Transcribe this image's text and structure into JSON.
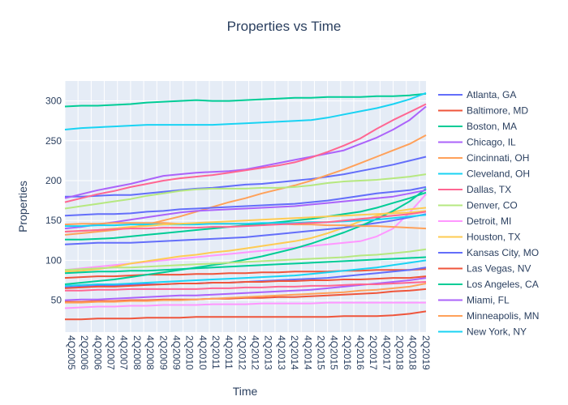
{
  "chart_data": {
    "type": "line",
    "title": "Properties vs Time",
    "xlabel": "Time",
    "ylabel": "Properties",
    "ylim": [
      10,
      325
    ],
    "y_ticks": [
      50,
      100,
      150,
      200,
      250,
      300
    ],
    "x_tick_labels": [
      "4Q2005",
      "2Q2006",
      "4Q2006",
      "2Q2007",
      "4Q2007",
      "2Q2008",
      "4Q2008",
      "2Q2009",
      "4Q2009",
      "2Q2010",
      "4Q2010",
      "2Q2011",
      "4Q2011",
      "2Q2012",
      "4Q2012",
      "2Q2013",
      "4Q2013",
      "2Q2014",
      "4Q2014",
      "2Q2015",
      "4Q2015",
      "2Q2016",
      "4Q2016",
      "2Q2017",
      "4Q2017",
      "2Q2018",
      "4Q2018",
      "2Q2019"
    ],
    "grid": true,
    "legend_position": "right",
    "background": "#e5ecf6",
    "series": [
      {
        "name": "Atlanta, GA",
        "color": "#636efa",
        "values": [
          180,
          180,
          181,
          182,
          182,
          184,
          186,
          188,
          190,
          191,
          193,
          195,
          196,
          198,
          200,
          202,
          205,
          208,
          212,
          216,
          220,
          225,
          230
        ]
      },
      {
        "name": "Baltimore, MD",
        "color": "#ef553b",
        "values": [
          78,
          79,
          80,
          80,
          81,
          82,
          82,
          82,
          83,
          83,
          84,
          84,
          85,
          85,
          86,
          86,
          86,
          87,
          87,
          88,
          88,
          88,
          89
        ]
      },
      {
        "name": "Boston, MA",
        "color": "#00cc96",
        "values": [
          293,
          294,
          294,
          295,
          296,
          298,
          299,
          300,
          301,
          300,
          300,
          301,
          302,
          303,
          304,
          304,
          305,
          305,
          305,
          306,
          306,
          307,
          309
        ]
      },
      {
        "name": "Chicago, IL",
        "color": "#ab63fa",
        "values": [
          178,
          183,
          188,
          192,
          196,
          201,
          206,
          208,
          210,
          211,
          212,
          214,
          218,
          222,
          226,
          230,
          234,
          238,
          246,
          254,
          264,
          276,
          293
        ]
      },
      {
        "name": "Cincinnati, OH",
        "color": "#ffa15a",
        "values": [
          132,
          134,
          136,
          138,
          141,
          145,
          150,
          155,
          161,
          167,
          173,
          178,
          184,
          189,
          194,
          200,
          207,
          214,
          222,
          230,
          238,
          246,
          257
        ]
      },
      {
        "name": "Cleveland, OH",
        "color": "#19d3f3",
        "values": [
          264,
          266,
          267,
          268,
          269,
          270,
          270,
          270,
          270,
          270,
          271,
          272,
          273,
          274,
          275,
          276,
          279,
          283,
          287,
          291,
          296,
          302,
          310
        ]
      },
      {
        "name": "Dallas, TX",
        "color": "#ff6692",
        "values": [
          173,
          178,
          183,
          187,
          192,
          196,
          200,
          203,
          205,
          207,
          210,
          213,
          216,
          219,
          223,
          229,
          236,
          244,
          253,
          265,
          276,
          286,
          296
        ]
      },
      {
        "name": "Denver, CO",
        "color": "#b6e880",
        "values": [
          165,
          168,
          171,
          174,
          177,
          181,
          184,
          187,
          189,
          190,
          190,
          190,
          191,
          191,
          192,
          194,
          197,
          199,
          200,
          201,
          203,
          205,
          208
        ]
      },
      {
        "name": "Detroit, MI",
        "color": "#ff97ff",
        "values": [
          88,
          90,
          92,
          94,
          96,
          98,
          100,
          102,
          104,
          106,
          108,
          110,
          112,
          114,
          116,
          118,
          120,
          122,
          124,
          130,
          140,
          160,
          183
        ]
      },
      {
        "name": "Houston, TX",
        "color": "#fecb52",
        "values": [
          86,
          87,
          89,
          92,
          96,
          99,
          102,
          105,
          107,
          110,
          112,
          115,
          118,
          121,
          124,
          128,
          134,
          141,
          149,
          156,
          161,
          164,
          166
        ]
      },
      {
        "name": "Kansas City, MO",
        "color": "#636efa",
        "values": [
          120,
          121,
          122,
          122,
          122,
          123,
          124,
          125,
          126,
          127,
          128,
          129,
          131,
          133,
          135,
          137,
          139,
          141,
          144,
          147,
          150,
          154,
          158
        ]
      },
      {
        "name": "Las Vegas, NV",
        "color": "#ef553b",
        "values": [
          26,
          26,
          27,
          27,
          27,
          28,
          28,
          28,
          29,
          29,
          29,
          29,
          29,
          29,
          29,
          29,
          29,
          30,
          30,
          30,
          31,
          33,
          36
        ]
      },
      {
        "name": "Los Angeles, CA",
        "color": "#00cc96",
        "values": [
          70,
          72,
          74,
          76,
          79,
          82,
          85,
          88,
          91,
          94,
          97,
          101,
          105,
          110,
          115,
          121,
          128,
          135,
          143,
          152,
          162,
          174,
          190
        ]
      },
      {
        "name": "Miami, FL",
        "color": "#ab63fa",
        "values": [
          140,
          142,
          145,
          148,
          151,
          154,
          157,
          160,
          162,
          163,
          164,
          165,
          166,
          167,
          168,
          170,
          172,
          174,
          176,
          178,
          180,
          184,
          188
        ]
      },
      {
        "name": "Minneapolis, MN",
        "color": "#ffa15a",
        "values": [
          145,
          146,
          146,
          147,
          147,
          147,
          147,
          146,
          146,
          146,
          146,
          146,
          146,
          146,
          145,
          145,
          144,
          144,
          143,
          143,
          142,
          141,
          140
        ]
      },
      {
        "name": "New York, NY",
        "color": "#19d3f3",
        "values": [
          68,
          69,
          70,
          70,
          71,
          72,
          73,
          74,
          75,
          76,
          77,
          78,
          79,
          80,
          81,
          83,
          85,
          87,
          89,
          91,
          94,
          97,
          100
        ]
      },
      {
        "name": "",
        "color": "#636efa",
        "values": [
          156,
          157,
          158,
          158,
          159,
          161,
          162,
          164,
          165,
          166,
          167,
          168,
          169,
          170,
          171,
          173,
          175,
          178,
          181,
          184,
          186,
          188,
          192
        ]
      },
      {
        "name": "",
        "color": "#ef553b",
        "values": [
          48,
          48,
          49,
          49,
          50,
          50,
          51,
          51,
          51,
          52,
          52,
          53,
          53,
          54,
          54,
          55,
          56,
          57,
          58,
          59,
          61,
          62,
          64
        ]
      },
      {
        "name": "",
        "color": "#00cc96",
        "values": [
          126,
          126,
          127,
          128,
          130,
          132,
          134,
          136,
          138,
          140,
          142,
          144,
          146,
          148,
          150,
          152,
          155,
          158,
          161,
          166,
          172,
          178,
          185
        ]
      },
      {
        "name": "",
        "color": "#ab63fa",
        "values": [
          50,
          51,
          51,
          52,
          53,
          54,
          55,
          56,
          56,
          57,
          58,
          59,
          60,
          61,
          62,
          63,
          65,
          67,
          69,
          71,
          73,
          75,
          78
        ]
      },
      {
        "name": "",
        "color": "#ffa15a",
        "values": [
          47,
          47,
          48,
          48,
          49,
          49,
          50,
          50,
          51,
          52,
          53,
          54,
          55,
          56,
          57,
          58,
          59,
          60,
          62,
          63,
          65,
          67,
          71
        ]
      },
      {
        "name": "",
        "color": "#19d3f3",
        "values": [
          143,
          143,
          144,
          144,
          145,
          145,
          145,
          145,
          145,
          146,
          146,
          146,
          147,
          147,
          147,
          148,
          148,
          149,
          150,
          151,
          153,
          155,
          157
        ]
      },
      {
        "name": "",
        "color": "#ff6692",
        "values": [
          62,
          62,
          63,
          63,
          64,
          64,
          64,
          64,
          64,
          65,
          65,
          66,
          66,
          67,
          67,
          68,
          68,
          69,
          70,
          70,
          71,
          72,
          73
        ]
      },
      {
        "name": "",
        "color": "#b6e880",
        "values": [
          88,
          89,
          90,
          91,
          91,
          92,
          93,
          94,
          95,
          96,
          97,
          98,
          99,
          100,
          101,
          102,
          103,
          104,
          106,
          107,
          109,
          111,
          114
        ]
      },
      {
        "name": "",
        "color": "#ff97ff",
        "values": [
          40,
          41,
          42,
          42,
          43,
          43,
          44,
          44,
          44,
          45,
          45,
          45,
          46,
          46,
          46,
          46,
          47,
          47,
          47,
          47,
          47,
          47,
          47
        ]
      },
      {
        "name": "",
        "color": "#fecb52",
        "values": [
          136,
          137,
          138,
          140,
          142,
          143,
          145,
          146,
          147,
          148,
          149,
          150,
          151,
          152,
          153,
          154,
          155,
          156,
          157,
          158,
          159,
          160,
          162
        ]
      },
      {
        "name": "",
        "color": "#636efa",
        "values": [
          66,
          67,
          68,
          68,
          69,
          70,
          70,
          71,
          71,
          72,
          72,
          73,
          74,
          75,
          76,
          77,
          78,
          80,
          82,
          84,
          86,
          88,
          91
        ]
      },
      {
        "name": "",
        "color": "#ef553b",
        "values": [
          65,
          66,
          67,
          67,
          68,
          69,
          70,
          71,
          71,
          72,
          72,
          73,
          73,
          74,
          74,
          75,
          75,
          76,
          76,
          77,
          78,
          78,
          80
        ]
      },
      {
        "name": "",
        "color": "#00cc96",
        "values": [
          84,
          85,
          86,
          86,
          87,
          87,
          88,
          89,
          90,
          91,
          92,
          93,
          94,
          95,
          96,
          97,
          98,
          99,
          100,
          101,
          102,
          103,
          104
        ]
      },
      {
        "name": "",
        "color": "#ff6692",
        "values": [
          136,
          137,
          138,
          139,
          140,
          140,
          141,
          141,
          141,
          142,
          142,
          143,
          144,
          145,
          146,
          147,
          148,
          150,
          152,
          154,
          156,
          158,
          161
        ]
      }
    ]
  }
}
